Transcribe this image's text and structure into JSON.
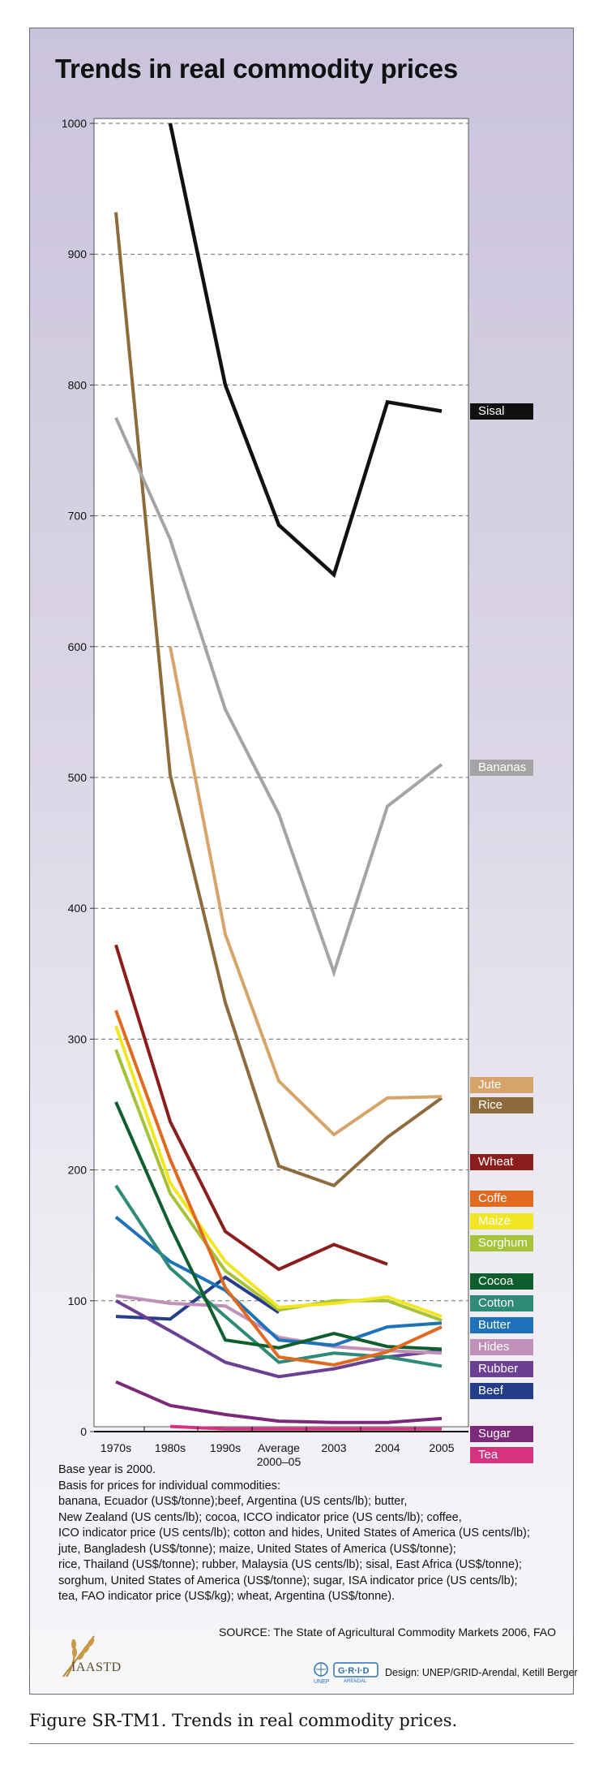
{
  "caption": "Figure SR-TM1. Trends in real commodity prices.",
  "notes": {
    "base_year": "Base year is 2000.",
    "basis_heading": "Basis for prices for individual commodities:",
    "basis_lines": [
      "banana, Ecuador (US$/tonne);beef, Argentina (US cents/lb); butter,",
      "New Zealand (US cents/lb); cocoa, ICCO indicator price (US cents/lb); coffee,",
      "ICO indicator price (US cents/lb); cotton and hides, United States of America (US cents/lb);",
      "jute, Bangladesh (US$/tonne); maize, United States of America (US$/tonne);",
      "rice, Thailand (US$/tonne); rubber, Malaysia (US cents/lb); sisal, East Africa (US$/tonne);",
      "sorghum, United States of America (US$/tonne); sugar, ISA indicator price (US cents/lb);",
      "tea, FAO indicator price (US$/kg); wheat, Argentina (US$/tonne)."
    ]
  },
  "source": "SOURCE: The State of Agricultural Commodity Markets 2006, FAO",
  "credits": {
    "iaastd": "IAASTD",
    "unep": "UNEP",
    "grid": "G·R·I·D",
    "grid_sub": "ARENDAL",
    "design": "Design: UNEP/GRID-Arendal, Ketill Berger"
  },
  "chart_data": {
    "type": "line",
    "title": "Trends in real commodity prices",
    "xlabel": "",
    "ylabel": "",
    "categories": [
      "1970s",
      "1980s",
      "1990s",
      "Average 2000–05",
      "2003",
      "2004",
      "2005"
    ],
    "yticks": [
      0,
      100,
      200,
      300,
      400,
      500,
      600,
      700,
      800,
      900,
      1000
    ],
    "ylim": [
      0,
      1000
    ],
    "grid": true,
    "legend_placement": "right",
    "series": [
      {
        "name": "Sisal",
        "color": "#111111",
        "values": [
          null,
          1000,
          800,
          693,
          655,
          787,
          780
        ]
      },
      {
        "name": "Bananas",
        "color": "#a6a3a4",
        "values": [
          775,
          682,
          552,
          472,
          351,
          478,
          510
        ]
      },
      {
        "name": "Jute",
        "color": "#d6a468",
        "values": [
          null,
          600,
          380,
          268,
          227,
          255,
          256
        ]
      },
      {
        "name": "Rice",
        "color": "#8e6b3c",
        "values": [
          932,
          502,
          328,
          203,
          188,
          225,
          255
        ]
      },
      {
        "name": "Wheat",
        "color": "#8b1e1d",
        "values": [
          372,
          237,
          153,
          124,
          143,
          128,
          null
        ]
      },
      {
        "name": "Coffe",
        "color": "#e06a20",
        "values": [
          322,
          208,
          110,
          57,
          51,
          61,
          80
        ]
      },
      {
        "name": "Maize",
        "color": "#f2e624",
        "values": [
          310,
          190,
          130,
          95,
          98,
          103,
          88
        ]
      },
      {
        "name": "Sorghum",
        "color": "#a6c23a",
        "values": [
          292,
          182,
          123,
          93,
          100,
          100,
          85
        ]
      },
      {
        "name": "Cocoa",
        "color": "#0f5e2e",
        "values": [
          252,
          157,
          70,
          64,
          75,
          65,
          63
        ]
      },
      {
        "name": "Cotton",
        "color": "#2f8a78",
        "values": [
          188,
          125,
          88,
          53,
          60,
          57,
          50
        ]
      },
      {
        "name": "Butter",
        "color": "#1e73b8",
        "values": [
          164,
          130,
          108,
          70,
          66,
          80,
          83
        ]
      },
      {
        "name": "Hides",
        "color": "#c090b8",
        "values": [
          104,
          98,
          96,
          72,
          65,
          62,
          60
        ]
      },
      {
        "name": "Rubber",
        "color": "#6b3f94",
        "values": [
          100,
          77,
          53,
          42,
          48,
          57,
          62
        ]
      },
      {
        "name": "Beef",
        "color": "#243d8a",
        "values": [
          88,
          86,
          118,
          91,
          null,
          null,
          null
        ]
      },
      {
        "name": "Sugar",
        "color": "#7b2a7a",
        "values": [
          38,
          20,
          13,
          8,
          7,
          7,
          10
        ]
      },
      {
        "name": "Tea",
        "color": "#d6337f",
        "values": [
          null,
          4,
          2,
          2,
          2,
          2,
          2
        ]
      }
    ]
  }
}
